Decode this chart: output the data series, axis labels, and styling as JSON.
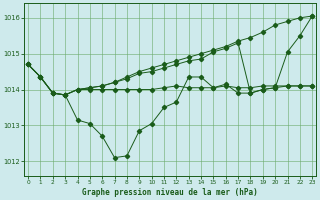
{
  "title": "Graphe pression niveau de la mer (hPa)",
  "bg_color": "#ceeaec",
  "grid_color": "#6aaa6a",
  "line_color": "#1a5c1a",
  "xlim": [
    -0.3,
    23.3
  ],
  "ylim": [
    1011.6,
    1016.4
  ],
  "yticks": [
    1012,
    1013,
    1014,
    1015,
    1016
  ],
  "xticks": [
    0,
    1,
    2,
    3,
    4,
    5,
    6,
    7,
    8,
    9,
    10,
    11,
    12,
    13,
    14,
    15,
    16,
    17,
    18,
    19,
    20,
    21,
    22,
    23
  ],
  "series": [
    [
      1014.7,
      1014.35,
      1013.9,
      1013.85,
      1013.15,
      1013.05,
      1012.7,
      1012.1,
      1012.15,
      1012.85,
      1013.05,
      1013.5,
      1013.65,
      1014.35,
      1014.35,
      1014.05,
      1014.15,
      1013.9,
      1013.9,
      1014.0,
      1014.05,
      1014.1,
      1014.1,
      1014.1
    ],
    [
      1014.7,
      1014.35,
      1013.9,
      1013.85,
      1014.0,
      1014.0,
      1014.0,
      1014.0,
      1014.0,
      1014.0,
      1014.0,
      1014.05,
      1014.1,
      1014.05,
      1014.05,
      1014.05,
      1014.1,
      1014.05,
      1014.05,
      1014.1,
      1014.1,
      1014.1,
      1014.1,
      1014.1
    ],
    [
      1014.7,
      1014.35,
      1013.9,
      1013.85,
      1014.0,
      1014.05,
      1014.1,
      1014.2,
      1014.35,
      1014.5,
      1014.6,
      1014.7,
      1014.8,
      1014.9,
      1015.0,
      1015.1,
      1015.2,
      1015.35,
      1015.45,
      1015.6,
      1015.8,
      1015.9,
      1016.0,
      1016.05
    ],
    [
      1014.7,
      1014.35,
      1013.9,
      1013.85,
      1014.0,
      1014.05,
      1014.1,
      1014.2,
      1014.3,
      1014.45,
      1014.5,
      1014.6,
      1014.7,
      1014.8,
      1014.85,
      1015.05,
      1015.15,
      1015.3,
      1013.9,
      1014.0,
      1014.05,
      1015.05,
      1015.5,
      1016.05
    ]
  ]
}
